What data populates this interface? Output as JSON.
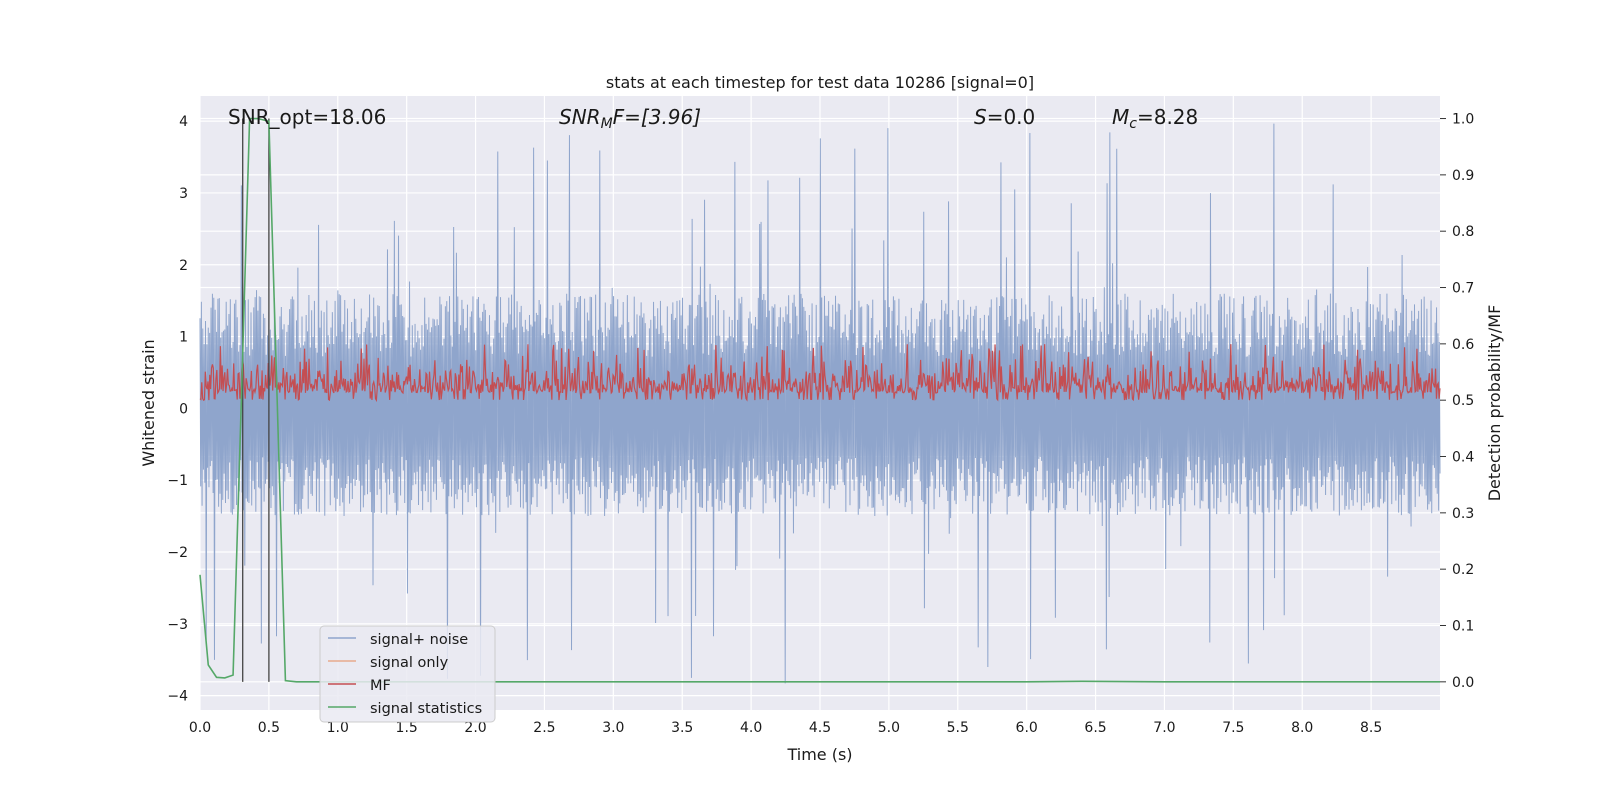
{
  "chart_data": {
    "type": "line",
    "title": "stats at each timestep for test data 10286 [signal=0]",
    "xlabel": "Time (s)",
    "ylabel": "Whitened strain",
    "ylabel_right": "Detection probability/MF",
    "xlim": [
      0.0,
      9.0
    ],
    "ylim": [
      -4.2,
      4.35
    ],
    "ylim_right": [
      -0.05,
      1.04
    ],
    "x_ticks": [
      "0.0",
      "0.5",
      "1.0",
      "1.5",
      "2.0",
      "2.5",
      "3.0",
      "3.5",
      "4.0",
      "4.5",
      "5.0",
      "5.5",
      "6.0",
      "6.5",
      "7.0",
      "7.5",
      "8.0",
      "8.5"
    ],
    "y_ticks": [
      "4",
      "3",
      "2",
      "1",
      "0",
      "−1",
      "−2",
      "−3",
      "−4"
    ],
    "y_ticks_right": [
      "1.0",
      "0.9",
      "0.8",
      "0.7",
      "0.6",
      "0.5",
      "0.4",
      "0.3",
      "0.2",
      "0.1",
      "0.0"
    ],
    "annotations": {
      "snr_opt": "SNR_opt=18.06",
      "snr_mf_main": "SNR",
      "snr_mf_sub": "M",
      "snr_mf_tail": "F=[3.96]",
      "s_main": "S",
      "s_tail": "=0.0",
      "mc_main": "M",
      "mc_sub": "c",
      "mc_tail": "=8.28"
    },
    "vlines_x": [
      0.31,
      0.5
    ],
    "series": [
      {
        "name": "signal+ noise",
        "color": "#8fa5cc",
        "axis": "left",
        "x_range": [
          0.0,
          9.0
        ],
        "sample_count": 1800,
        "typical_envelope": [
          -1.5,
          1.6
        ],
        "peak_max": 4.0,
        "peak_min": -3.85
      },
      {
        "name": "signal only",
        "color": "#e8a98c",
        "axis": "left",
        "x": [],
        "y": []
      },
      {
        "name": "MF",
        "color": "#c44e52",
        "axis": "right",
        "x_range": [
          0.0,
          9.0
        ],
        "baseline": 0.5,
        "band": [
          0.5,
          0.585
        ],
        "peak_max": 0.6
      },
      {
        "name": "signal statistics",
        "color": "#55a868",
        "axis": "right",
        "x": [
          0.0,
          0.06,
          0.12,
          0.18,
          0.24,
          0.3,
          0.36,
          0.42,
          0.5,
          0.56,
          0.62,
          0.7,
          1.0,
          2.0,
          3.0,
          4.0,
          5.0,
          6.0,
          6.4,
          7.0,
          8.0,
          9.0
        ],
        "y": [
          0.19,
          0.03,
          0.008,
          0.007,
          0.012,
          0.5,
          1.0,
          1.0,
          0.995,
          0.5,
          0.002,
          0.0,
          0.0,
          0.0,
          0.0,
          0.0,
          0.0,
          0.0,
          0.001,
          0.0,
          0.0,
          0.0
        ]
      }
    ],
    "legend": [
      "signal+ noise",
      "signal only",
      "MF",
      "signal statistics"
    ],
    "legend_location": "lower-left",
    "grid": true
  }
}
